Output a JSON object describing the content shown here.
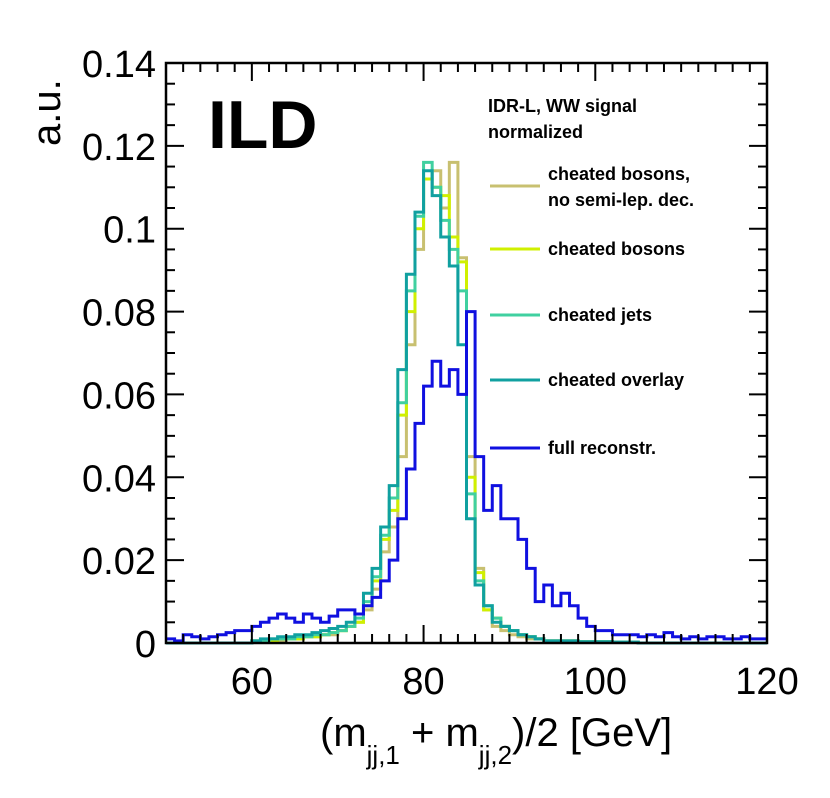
{
  "chart_data": {
    "type": "line",
    "style": "step-histogram",
    "title": "",
    "watermark": "ILD",
    "legend_title": [
      "IDR-L, WW signal",
      "normalized"
    ],
    "xlabel": {
      "main": "(m",
      "sub1": "jj,1",
      "mid": " + m",
      "sub2": "jj,2",
      "tail": ")/2 [GeV]"
    },
    "ylabel": "a.u.",
    "xlim": [
      50,
      120
    ],
    "ylim": [
      0,
      0.14
    ],
    "x_ticks": [
      60,
      80,
      100,
      120
    ],
    "x_tick_labels": [
      "60",
      "80",
      "100",
      "120"
    ],
    "y_ticks": [
      0,
      0.02,
      0.04,
      0.06,
      0.08,
      0.1,
      0.12,
      0.14
    ],
    "y_tick_labels": [
      "0",
      "0.02",
      "0.04",
      "0.06",
      "0.08",
      "0.1",
      "0.12",
      "0.14"
    ],
    "bin_edges_start": 50,
    "bin_width": 1,
    "series": [
      {
        "name": "cheated bosons, no semi-lep. dec.",
        "legend": [
          "cheated bosons,",
          "no semi-lep. dec."
        ],
        "color": "#c8c070",
        "values": [
          0,
          0,
          0,
          0,
          0,
          0,
          0,
          0,
          0,
          0,
          0.0005,
          0.0005,
          0.0005,
          0.0005,
          0.001,
          0.001,
          0.0015,
          0.0015,
          0.002,
          0.002,
          0.003,
          0.004,
          0.005,
          0.008,
          0.013,
          0.022,
          0.028,
          0.045,
          0.072,
          0.095,
          0.112,
          0.114,
          0.105,
          0.116,
          0.093,
          0.045,
          0.018,
          0.008,
          0.004,
          0.003,
          0.002,
          0.0015,
          0.001,
          0.001,
          0.0005,
          0.0005,
          0.0005,
          0.0005,
          0.0003,
          0.0003,
          0.0003,
          0.0003,
          0.0002,
          0.0002,
          0.0002,
          0,
          0,
          0,
          0,
          0,
          0,
          0,
          0,
          0,
          0,
          0,
          0,
          0,
          0,
          0
        ]
      },
      {
        "name": "cheated bosons",
        "legend": [
          "cheated bosons"
        ],
        "color": "#d0f000",
        "values": [
          0,
          0,
          0,
          0,
          0,
          0,
          0,
          0,
          0,
          0,
          0.0005,
          0.0005,
          0.0005,
          0.001,
          0.001,
          0.001,
          0.0015,
          0.0015,
          0.002,
          0.0025,
          0.003,
          0.004,
          0.005,
          0.009,
          0.015,
          0.025,
          0.032,
          0.055,
          0.08,
          0.1,
          0.112,
          0.11,
          0.108,
          0.098,
          0.092,
          0.04,
          0.017,
          0.008,
          0.006,
          0.004,
          0.003,
          0.002,
          0.0015,
          0.001,
          0.0005,
          0.0005,
          0.0005,
          0.0005,
          0.0003,
          0.0003,
          0.0003,
          0.0003,
          0.0002,
          0.0002,
          0.0002,
          0,
          0,
          0,
          0,
          0,
          0,
          0,
          0,
          0,
          0,
          0,
          0,
          0,
          0,
          0
        ]
      },
      {
        "name": "cheated jets",
        "legend": [
          "cheated jets"
        ],
        "color": "#40d0a0",
        "values": [
          0,
          0,
          0,
          0,
          0,
          0,
          0,
          0,
          0,
          0,
          0.0005,
          0.0005,
          0.001,
          0.001,
          0.001,
          0.0015,
          0.0015,
          0.002,
          0.002,
          0.0025,
          0.003,
          0.004,
          0.006,
          0.01,
          0.016,
          0.026,
          0.035,
          0.058,
          0.085,
          0.103,
          0.116,
          0.11,
          0.102,
          0.095,
          0.085,
          0.036,
          0.015,
          0.009,
          0.006,
          0.004,
          0.003,
          0.002,
          0.0015,
          0.001,
          0.0005,
          0.0005,
          0.0005,
          0.0005,
          0.0003,
          0.0003,
          0.0003,
          0.0003,
          0.0002,
          0.0002,
          0.0002,
          0,
          0,
          0,
          0,
          0,
          0,
          0,
          0,
          0,
          0,
          0,
          0,
          0,
          0,
          0
        ]
      },
      {
        "name": "cheated overlay",
        "legend": [
          "cheated overlay"
        ],
        "color": "#10a0a0",
        "values": [
          0,
          0,
          0,
          0,
          0,
          0,
          0,
          0,
          0,
          0,
          0.0005,
          0.001,
          0.001,
          0.0015,
          0.0015,
          0.002,
          0.002,
          0.0025,
          0.003,
          0.0035,
          0.004,
          0.005,
          0.007,
          0.012,
          0.018,
          0.028,
          0.038,
          0.066,
          0.089,
          0.104,
          0.114,
          0.108,
          0.098,
          0.091,
          0.072,
          0.03,
          0.014,
          0.009,
          0.005,
          0.004,
          0.003,
          0.002,
          0.0015,
          0.001,
          0.0005,
          0.0005,
          0.0005,
          0.0005,
          0.0003,
          0.0003,
          0.0003,
          0.0003,
          0.0002,
          0.0002,
          0.0002,
          0,
          0,
          0,
          0,
          0,
          0,
          0,
          0,
          0,
          0,
          0,
          0,
          0,
          0,
          0
        ]
      },
      {
        "name": "full reconstr.",
        "legend": [
          "full reconstr."
        ],
        "color": "#1010e0",
        "values": [
          0.001,
          0.0005,
          0.002,
          0.0015,
          0.001,
          0.0015,
          0.002,
          0.0025,
          0.003,
          0.003,
          0.004,
          0.005,
          0.006,
          0.007,
          0.006,
          0.005,
          0.007,
          0.006,
          0.005,
          0.0065,
          0.008,
          0.008,
          0.007,
          0.009,
          0.011,
          0.015,
          0.02,
          0.03,
          0.042,
          0.053,
          0.062,
          0.068,
          0.062,
          0.066,
          0.06,
          0.08,
          0.045,
          0.032,
          0.038,
          0.03,
          0.03,
          0.025,
          0.018,
          0.01,
          0.014,
          0.009,
          0.012,
          0.009,
          0.006,
          0.004,
          0.003,
          0.003,
          0.002,
          0.002,
          0.002,
          0.0015,
          0.002,
          0.0015,
          0.0025,
          0.0015,
          0.001,
          0.0015,
          0.001,
          0.0015,
          0.0015,
          0.001,
          0.001,
          0.0015,
          0.001,
          0.001
        ]
      }
    ]
  }
}
